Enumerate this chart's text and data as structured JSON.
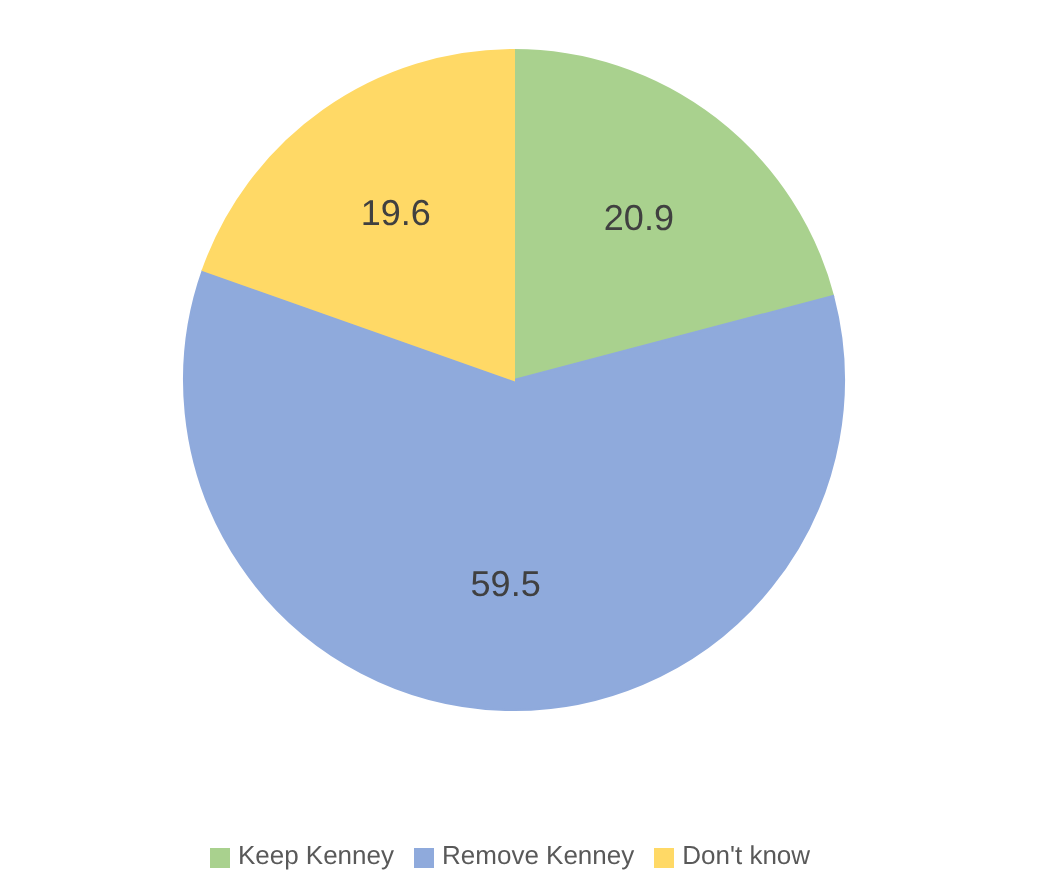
{
  "chart_data": {
    "type": "pie",
    "categories": [
      "Keep Kenney",
      "Remove Kenney",
      "Don't know"
    ],
    "values": [
      20.9,
      59.5,
      19.6
    ],
    "colors": [
      "#a9d18e",
      "#8faadc",
      "#ffd966"
    ],
    "data_labels": true,
    "legend": "bottom"
  }
}
